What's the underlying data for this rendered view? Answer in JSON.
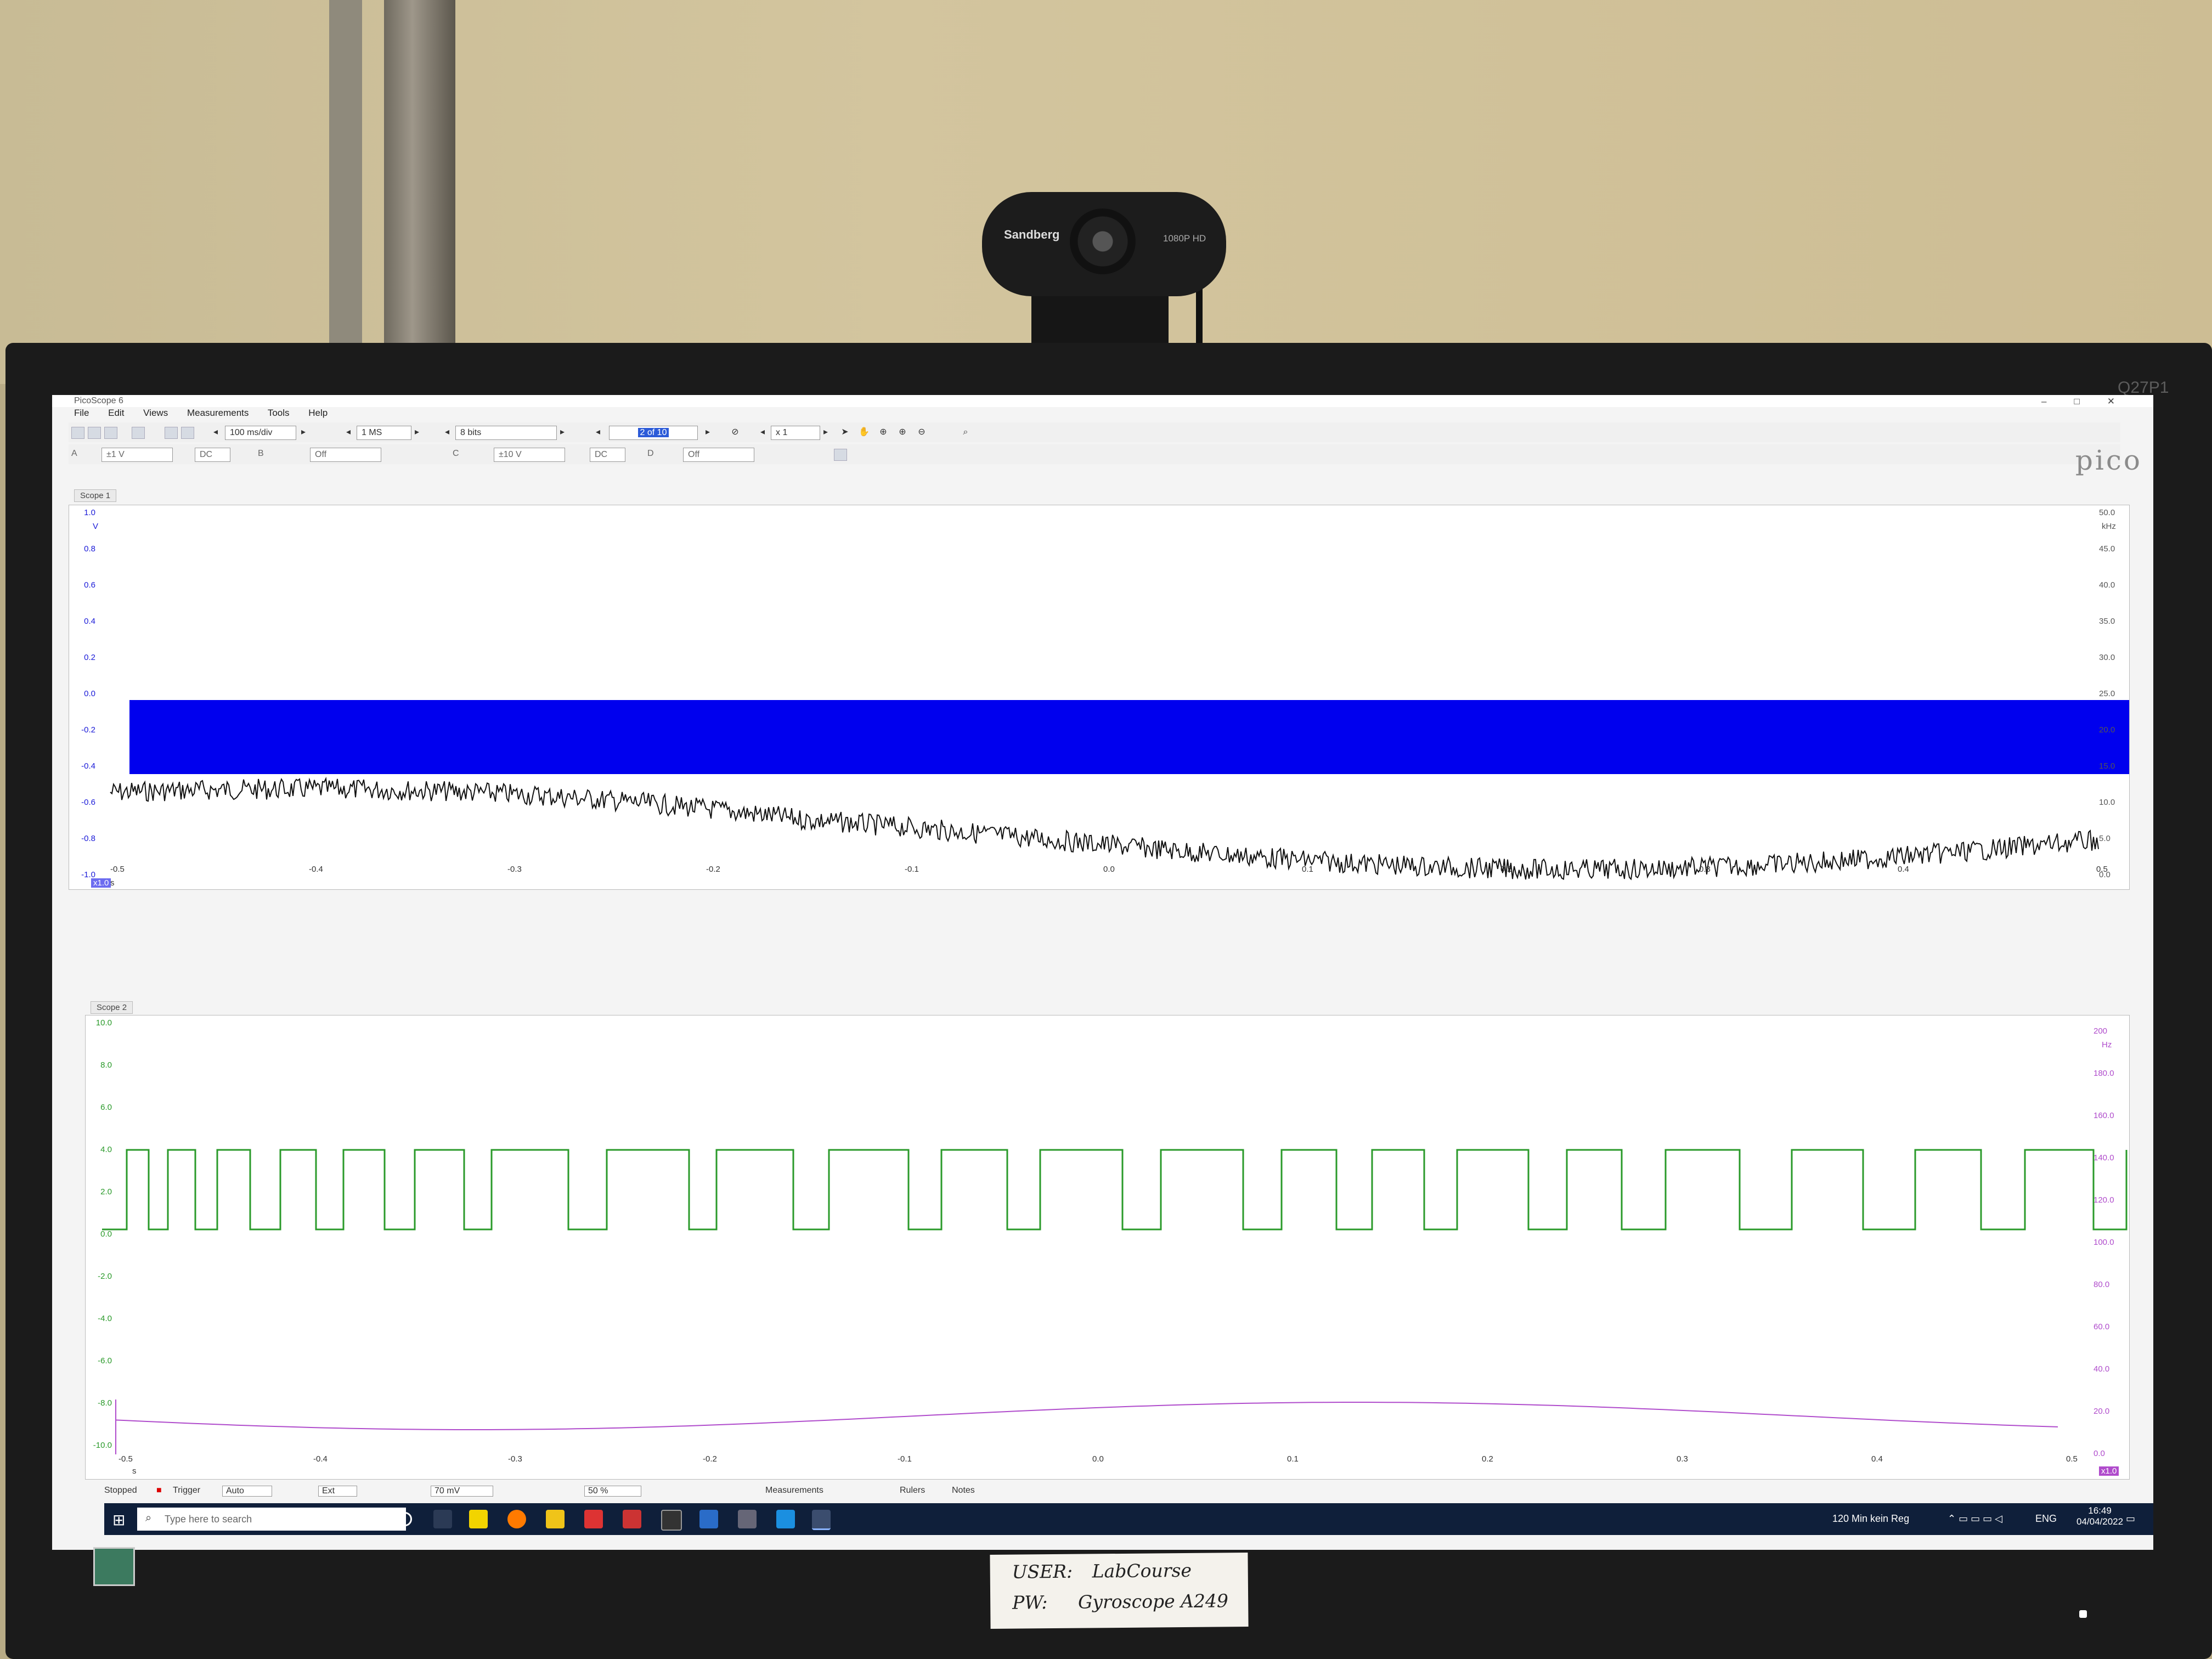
{
  "webcam": {
    "brand": "Sandberg",
    "label": "1080P HD"
  },
  "monitor": {
    "model": "Q27P1"
  },
  "app": {
    "title": "PicoScope 6",
    "window_controls": [
      "–",
      "□",
      "✕"
    ],
    "menu": [
      "File",
      "Edit",
      "Views",
      "Measurements",
      "Tools",
      "Help"
    ],
    "logo": "pico"
  },
  "toolbar": {
    "timebase": "100 ms/div",
    "samples": "1 MS",
    "resolution": "8 bits",
    "capture": "2 of 10",
    "zoom": "x 1"
  },
  "channels": {
    "a": {
      "label": "A",
      "range": "±1 V",
      "coupling": "DC"
    },
    "b": {
      "label": "B",
      "range": "Off"
    },
    "c": {
      "label": "C",
      "range": "±10 V",
      "coupling": "DC"
    },
    "d": {
      "label": "D",
      "range": "Off"
    }
  },
  "colors": {
    "channel_a": "#0000ee",
    "math": "#111111",
    "channel_c": "#2a9a2a",
    "frequency": "#b04ccc"
  },
  "scope1": {
    "tab": "Scope 1",
    "y_left": [
      "1.0",
      "0.8",
      "0.6",
      "0.4",
      "0.2",
      "0.0",
      "-0.2",
      "-0.4",
      "-0.6",
      "-0.8",
      "-1.0"
    ],
    "y_left_unit": "V",
    "y_right": [
      "50.0",
      "45.0",
      "40.0",
      "35.0",
      "30.0",
      "25.0",
      "20.0",
      "15.0",
      "10.0",
      "5.0",
      "0.0"
    ],
    "y_right_unit": "kHz",
    "x": [
      "-0.5",
      "-0.4",
      "-0.3",
      "-0.2",
      "-0.1",
      "0.0",
      "0.1",
      "0.2",
      "0.3",
      "0.4",
      "0.5"
    ],
    "x_unit": "s",
    "zoom_badge": "x1.0"
  },
  "scope2": {
    "tab": "Scope 2",
    "y_left": [
      "10.0",
      "8.0",
      "6.0",
      "4.0",
      "2.0",
      "0.0",
      "-2.0",
      "-4.0",
      "-6.0",
      "-8.0",
      "-10.0"
    ],
    "y_right": [
      "200",
      "180.0",
      "160.0",
      "140.0",
      "120.0",
      "100.0",
      "80.0",
      "60.0",
      "40.0",
      "20.0",
      "0.0"
    ],
    "y_right_unit": "Hz",
    "x": [
      "-0.5",
      "-0.4",
      "-0.3",
      "-0.2",
      "-0.1",
      "0.0",
      "0.1",
      "0.2",
      "0.3",
      "0.4",
      "0.5"
    ],
    "x_unit": "s",
    "zoom_badge": "x1.0"
  },
  "status": {
    "state": "Stopped",
    "trigger_label": "Trigger",
    "trigger_mode": "Auto",
    "source": "Ext",
    "threshold": "70 mV",
    "pretrigger": "50 %",
    "measurements": "Measurements",
    "rulers": "Rulers",
    "notes": "Notes"
  },
  "taskbar": {
    "search_placeholder": "Type here to search",
    "weather": "120 Min kein Reg",
    "language": "ENG",
    "time": "16:49",
    "date": "04/04/2022"
  },
  "note": {
    "user_label": "USER:",
    "user_value": "LabCourse",
    "pw_label": "PW:",
    "pw_value": "Gyroscope A249"
  }
}
